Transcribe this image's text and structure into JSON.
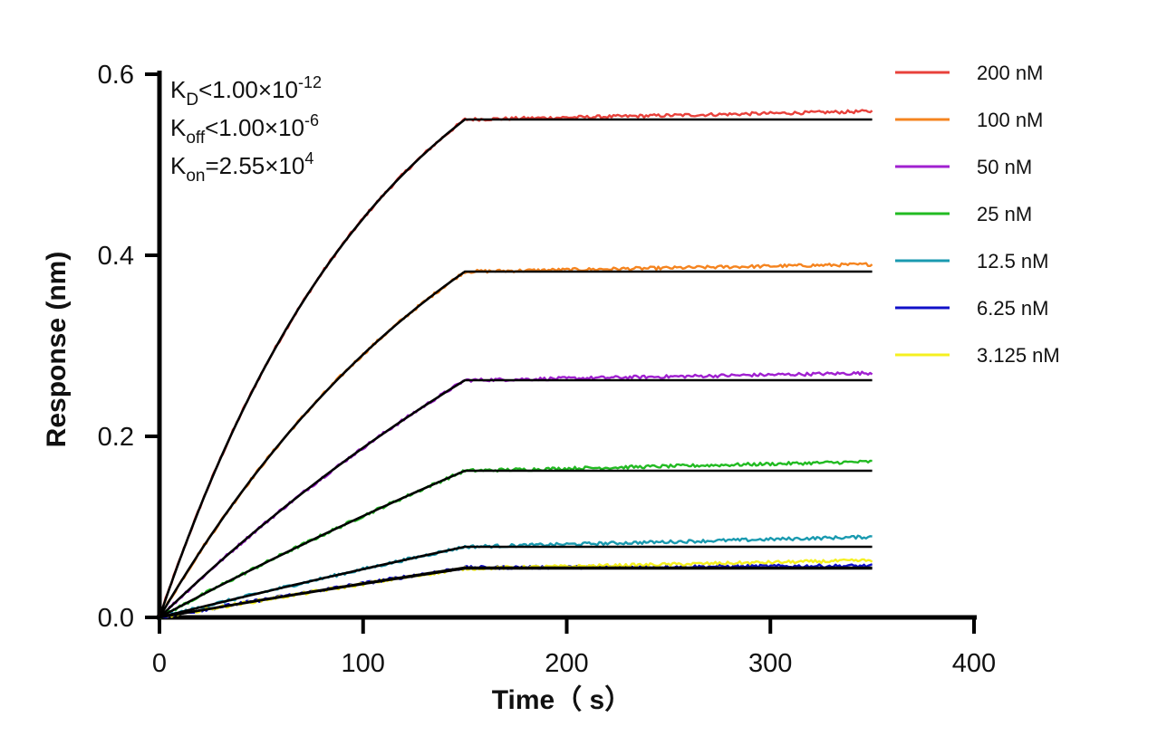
{
  "chart_data": {
    "type": "line",
    "title": "",
    "xlabel": "Time（ s）",
    "ylabel": "Response (nm)",
    "xlim": [
      0,
      400
    ],
    "ylim": [
      0,
      0.6
    ],
    "x_ticks": [
      "0",
      "100",
      "200",
      "300",
      "400"
    ],
    "y_ticks": [
      "0.0",
      "0.2",
      "0.4",
      "0.6"
    ],
    "grid": false,
    "legend_position": "right",
    "association_end_s": 150,
    "dissociation_end_s": 350,
    "annotations": {
      "kd": {
        "base": "K",
        "sub": "D",
        "text": "<1.00×10",
        "sup": "-12"
      },
      "koff": {
        "base": "K",
        "sub": "off",
        "text": "<1.00×10",
        "sup": "-6"
      },
      "kon": {
        "base": "K",
        "sub": "on",
        "text": "=2.55×10",
        "sup": "4"
      }
    },
    "series": [
      {
        "name": "200 nM",
        "color": "#e8413b",
        "plateau": 0.55,
        "end_value": 0.559
      },
      {
        "name": "100 nM",
        "color": "#f5841f",
        "plateau": 0.382,
        "end_value": 0.39
      },
      {
        "name": "50 nM",
        "color": "#a020d0",
        "plateau": 0.262,
        "end_value": 0.27
      },
      {
        "name": "25 nM",
        "color": "#22bb22",
        "plateau": 0.162,
        "end_value": 0.172
      },
      {
        "name": "12.5 nM",
        "color": "#1a9ab0",
        "plateau": 0.078,
        "end_value": 0.089
      },
      {
        "name": "6.25 nM",
        "color": "#1010c8",
        "plateau": 0.055,
        "end_value": 0.057
      },
      {
        "name": "3.125 nM",
        "color": "#f5f020",
        "plateau": 0.054,
        "end_value": 0.063
      }
    ],
    "fit_color": "#000000"
  }
}
